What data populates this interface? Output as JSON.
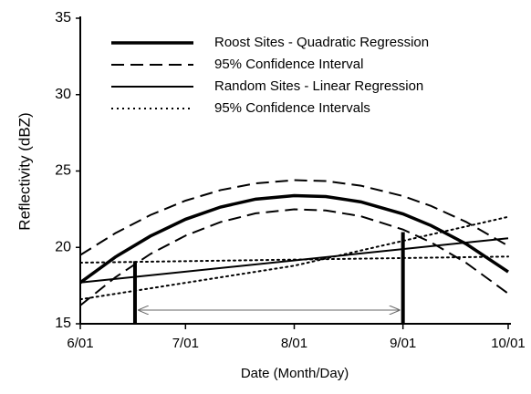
{
  "chart_data": {
    "type": "line",
    "xlabel": "Date (Month/Day)",
    "ylabel": "Reflectivity (dBZ)",
    "xlim": [
      0,
      122
    ],
    "xticks": [
      {
        "value": 0,
        "label": "6/01"
      },
      {
        "value": 30,
        "label": "7/01"
      },
      {
        "value": 61,
        "label": "8/01"
      },
      {
        "value": 92,
        "label": "9/01"
      },
      {
        "value": 122,
        "label": "10/01"
      }
    ],
    "ylim": [
      15,
      35
    ],
    "yticks": [
      15,
      20,
      25,
      30,
      35
    ],
    "series": [
      {
        "name": "Roost Sites - Quadratic Regression",
        "color": "#000000",
        "dash": "solid",
        "width": 3.5,
        "x": [
          0,
          10,
          20,
          30,
          40,
          50,
          61,
          70,
          80,
          92,
          100,
          110,
          122
        ],
        "values": [
          17.7,
          19.37,
          20.74,
          21.84,
          22.64,
          23.16,
          23.39,
          23.33,
          22.98,
          22.19,
          21.43,
          20.23,
          18.4
        ]
      },
      {
        "name": "95% Confidence Interval",
        "color": "#000000",
        "dash": "dashed",
        "width": 2,
        "x": [
          0,
          10,
          20,
          30,
          40,
          50,
          61,
          70,
          80,
          92,
          100,
          110,
          122
        ],
        "values": [
          19.5,
          20.93,
          22.12,
          23.06,
          23.75,
          24.19,
          24.4,
          24.34,
          24.04,
          23.36,
          22.71,
          21.67,
          20.1
        ]
      },
      {
        "color": "#000000",
        "dash": "dashed",
        "width": 2,
        "x": [
          0,
          10,
          20,
          30,
          40,
          50,
          61,
          70,
          80,
          92,
          100,
          110,
          122
        ],
        "values": [
          16.2,
          18.04,
          19.57,
          20.77,
          21.66,
          22.23,
          22.49,
          22.42,
          22.04,
          21.17,
          20.33,
          18.99,
          16.98
        ]
      },
      {
        "name": "Random Sites - Linear Regression",
        "color": "#000000",
        "dash": "solid",
        "width": 2,
        "x": [
          0,
          122
        ],
        "values": [
          17.7,
          20.6
        ]
      },
      {
        "name": "95% Confidence Intervals",
        "color": "#000000",
        "dash": "dotted",
        "width": 2,
        "x": [
          0,
          61,
          122
        ],
        "values": [
          16.6,
          18.8,
          22.0
        ]
      },
      {
        "color": "#000000",
        "dash": "dotted",
        "width": 2,
        "x": [
          0,
          61,
          122
        ],
        "values": [
          19.0,
          19.2,
          19.4
        ]
      }
    ],
    "vlines": [
      {
        "x": 15.6,
        "y": 19.1
      },
      {
        "x": 92,
        "y": 21.0
      }
    ]
  }
}
